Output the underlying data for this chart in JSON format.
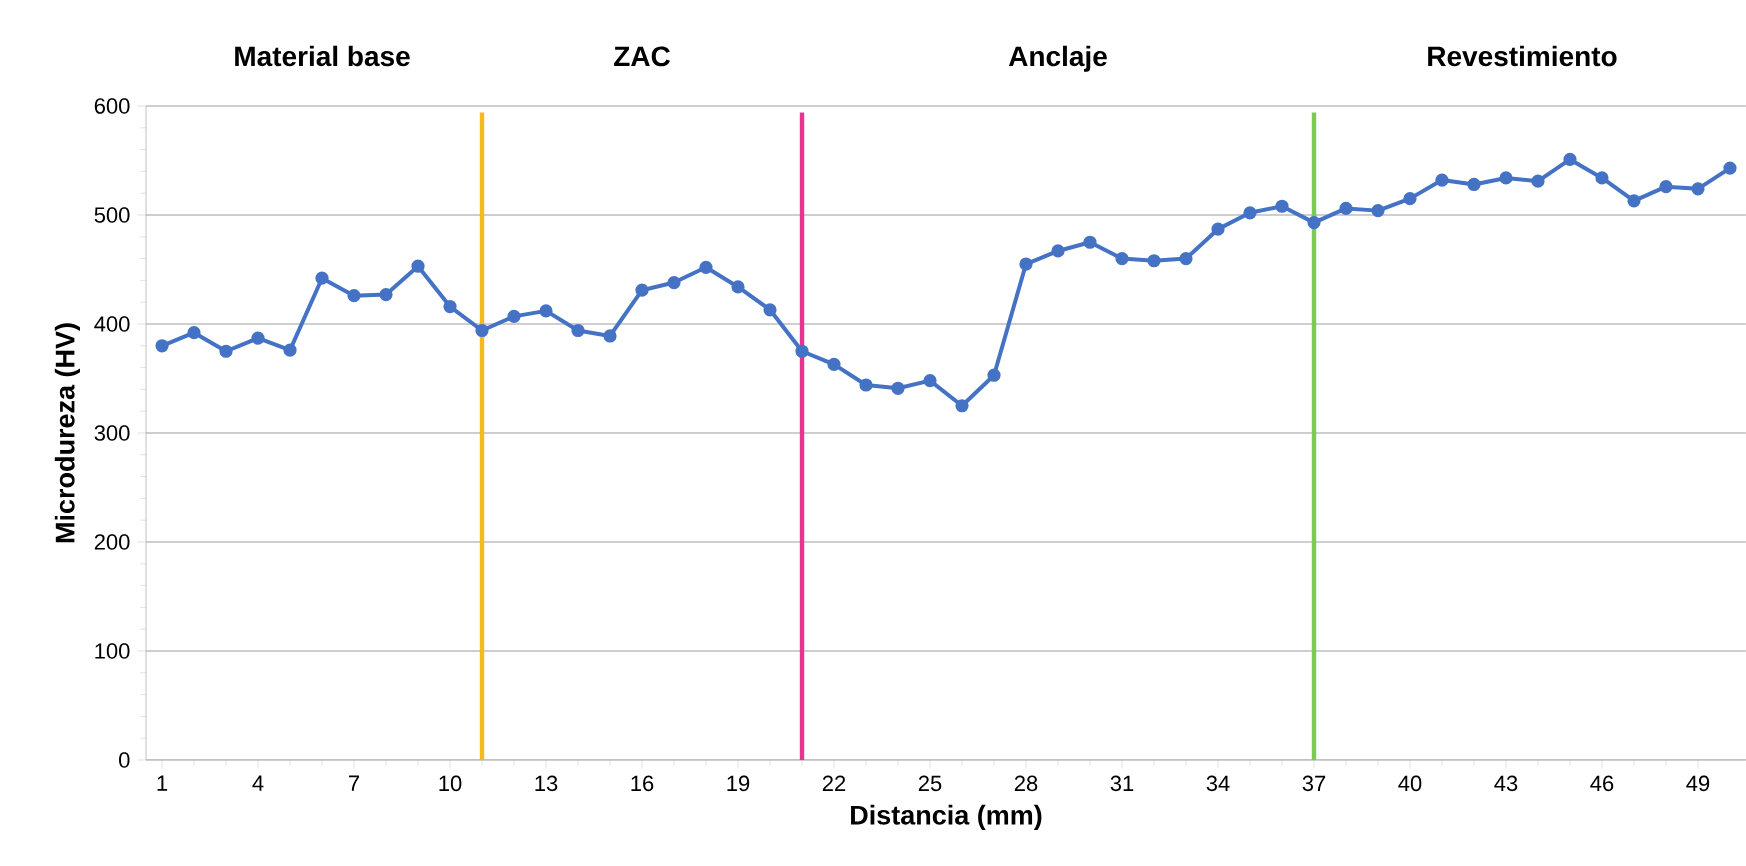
{
  "chart_data": {
    "type": "line",
    "xlabel": "Distancia (mm)",
    "ylabel": "Microdureza (HV)",
    "x": [
      1,
      2,
      3,
      4,
      5,
      6,
      7,
      8,
      9,
      10,
      11,
      12,
      13,
      14,
      15,
      16,
      17,
      18,
      19,
      20,
      21,
      22,
      23,
      24,
      25,
      26,
      27,
      28,
      29,
      30,
      31,
      32,
      33,
      34,
      35,
      36,
      37,
      38,
      39,
      40,
      41,
      42,
      43,
      44,
      45,
      46,
      47,
      48,
      49,
      50
    ],
    "series": [
      {
        "color": "#4472c4",
        "values": [
          380,
          392,
          375,
          387,
          376,
          442,
          426,
          427,
          453,
          416,
          394,
          407,
          412,
          394,
          389,
          431,
          438,
          452,
          434,
          413,
          375,
          363,
          344,
          341,
          348,
          325,
          353,
          455,
          467,
          475,
          460,
          458,
          460,
          487,
          502,
          508,
          493,
          506,
          504,
          515,
          532,
          528,
          534,
          531,
          551,
          534,
          513,
          526,
          524,
          543
        ]
      }
    ],
    "xlim": [
      0.5,
      50.5
    ],
    "xticks": [
      1,
      4,
      7,
      10,
      13,
      16,
      19,
      22,
      25,
      28,
      31,
      34,
      37,
      40,
      43,
      46,
      49
    ],
    "ylim": [
      0,
      600
    ],
    "yticks": [
      0,
      100,
      200,
      300,
      400,
      500,
      600
    ],
    "grid": "y",
    "marker": "circle",
    "line_style": "solid",
    "ref_lines": [
      {
        "axis": "x",
        "value": 11,
        "color": "#f5b921"
      },
      {
        "axis": "x",
        "value": 21,
        "color": "#e8348f"
      },
      {
        "axis": "x",
        "value": 37,
        "color": "#7ccb50"
      }
    ],
    "annotations": [
      "Material base",
      "ZAC",
      "Anclaje",
      "Revestimiento"
    ]
  }
}
